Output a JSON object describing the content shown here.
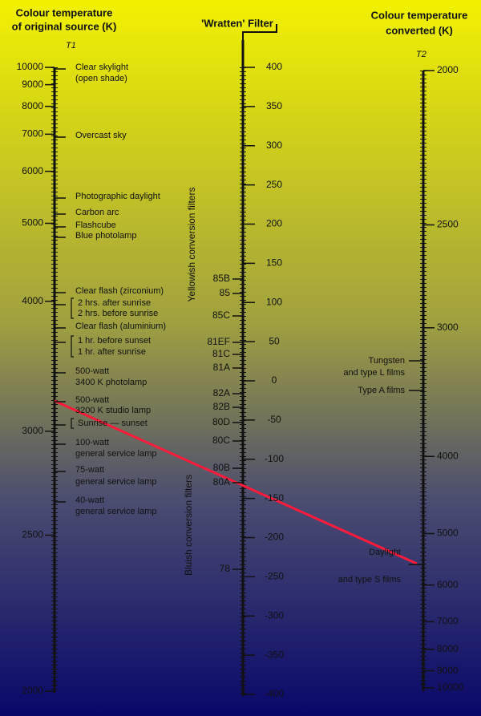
{
  "left_scale": {
    "title": [
      "Colour temperature",
      "of original source (K)"
    ],
    "symbol": "T1",
    "ticks": [
      10000,
      9000,
      8000,
      7000,
      6000,
      5000,
      4000,
      3000,
      2500,
      2000
    ],
    "annotations": [
      [
        "Clear skylight",
        "(open shade)"
      ],
      [
        "Overcast sky"
      ],
      [
        "Photographic daylight"
      ],
      [
        "Carbon arc"
      ],
      [
        "Flashcube"
      ],
      [
        "Blue photolamp"
      ],
      [
        "Clear flash (zirconium)"
      ],
      [
        "2 hrs. after sunrise",
        "2 hrs. before sunrise"
      ],
      [
        "Clear flash (aluminium)"
      ],
      [
        "1 hr. before sunset",
        "1 hr. after sunrise"
      ],
      [
        "500-watt",
        "3400 K photolamp"
      ],
      [
        "500-watt",
        "3200 K studio lamp"
      ],
      [
        "Sunrise — sunset"
      ],
      [
        "100-watt",
        "general service lamp"
      ],
      [
        "75-watt",
        "general service lamp"
      ],
      [
        "40-watt",
        "general service lamp"
      ]
    ]
  },
  "middle_scale": {
    "title": "'Wratten' Filter",
    "ticks": [
      400,
      350,
      300,
      250,
      200,
      150,
      100,
      50,
      0,
      -50,
      -100,
      -150,
      -200,
      -250,
      -300,
      -350,
      -400
    ],
    "filters": [
      "85B",
      "85",
      "85C",
      "81EF",
      "81C",
      "81A",
      "82A",
      "82B",
      "80D",
      "80C",
      "80B",
      "80A",
      "78"
    ],
    "upper_label": "Yellowish conversion filters",
    "lower_label": "Bluish conversion filters"
  },
  "right_scale": {
    "title": [
      "Colour temperature",
      "converted (K)"
    ],
    "symbol": "T2",
    "ticks": [
      2000,
      2500,
      3000,
      4000,
      5000,
      6000,
      7000,
      8000,
      9000,
      10000
    ],
    "annotations": [
      [
        "Tungsten",
        "and type L films"
      ],
      [
        "Type A films"
      ],
      [
        "Daylight",
        "and type S films"
      ]
    ]
  }
}
